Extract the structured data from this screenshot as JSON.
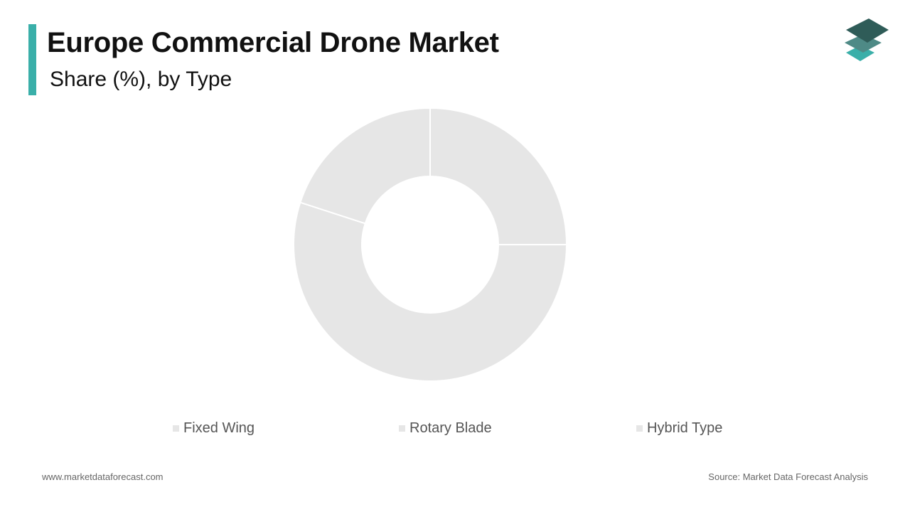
{
  "header": {
    "title": "Europe Commercial Drone Market",
    "subtitle": "Share (%), by Type"
  },
  "logo": {
    "icon": "stacked-layers-logo",
    "colors": [
      "#2f5c58",
      "#4e8a86",
      "#3aafa9"
    ]
  },
  "chart_data": {
    "type": "pie",
    "donut": true,
    "title": "Europe Commercial Drone Market",
    "subtitle": "Share (%), by Type",
    "categories": [
      "Fixed Wing",
      "Rotary Blade",
      "Hybrid Type"
    ],
    "values": [
      25,
      55,
      20
    ],
    "colors": [
      "#e6e6e6",
      "#e6e6e6",
      "#e6e6e6"
    ],
    "legend_position": "bottom"
  },
  "footer": {
    "website": "www.marketdataforecast.com",
    "source": "Source: Market Data Forecast Analysis"
  }
}
